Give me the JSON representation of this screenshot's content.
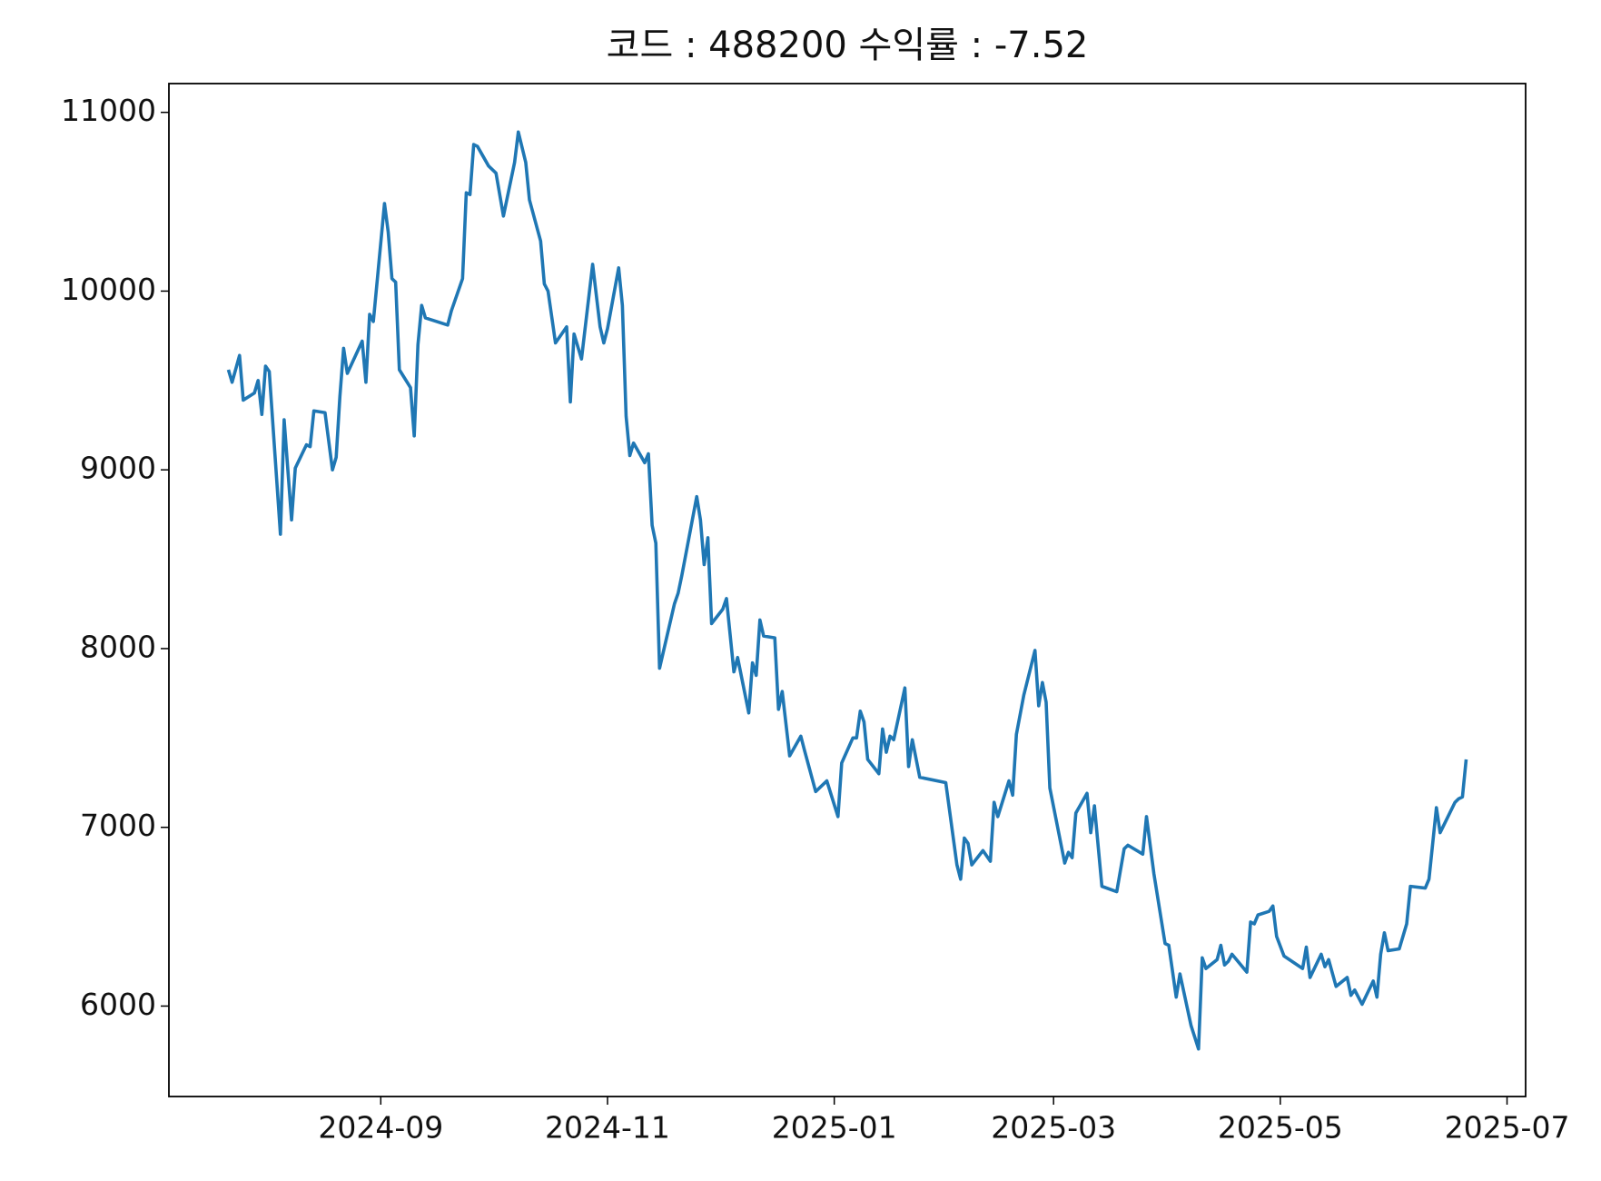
{
  "chart_data": {
    "type": "line",
    "title": "코드 : 488200 수익률 : -7.52",
    "x": [
      "2024-07-22",
      "2024-07-23",
      "2024-07-25",
      "2024-07-26",
      "2024-07-29",
      "2024-07-30",
      "2024-07-31",
      "2024-08-01",
      "2024-08-02",
      "2024-08-05",
      "2024-08-06",
      "2024-08-08",
      "2024-08-09",
      "2024-08-12",
      "2024-08-13",
      "2024-08-14",
      "2024-08-17",
      "2024-08-19",
      "2024-08-20",
      "2024-08-21",
      "2024-08-22",
      "2024-08-23",
      "2024-08-27",
      "2024-08-28",
      "2024-08-29",
      "2024-08-30",
      "2024-09-02",
      "2024-09-03",
      "2024-09-04",
      "2024-09-05",
      "2024-09-06",
      "2024-09-09",
      "2024-09-10",
      "2024-09-11",
      "2024-09-12",
      "2024-09-13",
      "2024-09-19",
      "2024-09-20",
      "2024-09-23",
      "2024-09-24",
      "2024-09-25",
      "2024-09-26",
      "2024-09-27",
      "2024-09-30",
      "2024-10-02",
      "2024-10-04",
      "2024-10-07",
      "2024-10-08",
      "2024-10-10",
      "2024-10-11",
      "2024-10-14",
      "2024-10-15",
      "2024-10-16",
      "2024-10-18",
      "2024-10-21",
      "2024-10-22",
      "2024-10-23",
      "2024-10-25",
      "2024-10-28",
      "2024-10-30",
      "2024-10-31",
      "2024-11-01",
      "2024-11-04",
      "2024-11-05",
      "2024-11-06",
      "2024-11-07",
      "2024-11-08",
      "2024-11-11",
      "2024-11-12",
      "2024-11-13",
      "2024-11-14",
      "2024-11-15",
      "2024-11-19",
      "2024-11-20",
      "2024-11-21",
      "2024-11-25",
      "2024-11-26",
      "2024-11-27",
      "2024-11-28",
      "2024-11-29",
      "2024-12-02",
      "2024-12-03",
      "2024-12-05",
      "2024-12-06",
      "2024-12-09",
      "2024-12-10",
      "2024-12-11",
      "2024-12-12",
      "2024-12-13",
      "2024-12-16",
      "2024-12-17",
      "2024-12-18",
      "2024-12-20",
      "2024-12-23",
      "2024-12-24",
      "2024-12-27",
      "2024-12-30",
      "2025-01-02",
      "2025-01-03",
      "2025-01-06",
      "2025-01-07",
      "2025-01-08",
      "2025-01-09",
      "2025-01-10",
      "2025-01-13",
      "2025-01-14",
      "2025-01-15",
      "2025-01-16",
      "2025-01-17",
      "2025-01-20",
      "2025-01-21",
      "2025-01-22",
      "2025-01-24",
      "2025-01-31",
      "2025-02-03",
      "2025-02-04",
      "2025-02-05",
      "2025-02-06",
      "2025-02-07",
      "2025-02-10",
      "2025-02-12",
      "2025-02-13",
      "2025-02-14",
      "2025-02-17",
      "2025-02-18",
      "2025-02-19",
      "2025-02-21",
      "2025-02-24",
      "2025-02-25",
      "2025-02-26",
      "2025-02-27",
      "2025-02-28",
      "2025-03-04",
      "2025-03-05",
      "2025-03-06",
      "2025-03-07",
      "2025-03-10",
      "2025-03-11",
      "2025-03-12",
      "2025-03-14",
      "2025-03-18",
      "2025-03-20",
      "2025-03-21",
      "2025-03-25",
      "2025-03-26",
      "2025-03-28",
      "2025-03-31",
      "2025-04-01",
      "2025-04-03",
      "2025-04-04",
      "2025-04-07",
      "2025-04-09",
      "2025-04-10",
      "2025-04-11",
      "2025-04-14",
      "2025-04-15",
      "2025-04-16",
      "2025-04-17",
      "2025-04-18",
      "2025-04-22",
      "2025-04-23",
      "2025-04-24",
      "2025-04-25",
      "2025-04-28",
      "2025-04-29",
      "2025-04-30",
      "2025-05-02",
      "2025-05-07",
      "2025-05-08",
      "2025-05-09",
      "2025-05-12",
      "2025-05-13",
      "2025-05-14",
      "2025-05-16",
      "2025-05-19",
      "2025-05-20",
      "2025-05-21",
      "2025-05-23",
      "2025-05-26",
      "2025-05-27",
      "2025-05-28",
      "2025-05-29",
      "2025-05-30",
      "2025-06-02",
      "2025-06-04",
      "2025-06-05",
      "2025-06-09",
      "2025-06-10",
      "2025-06-12",
      "2025-06-13",
      "2025-06-17",
      "2025-06-18",
      "2025-06-19",
      "2025-06-20"
    ],
    "series": [
      {
        "color": "#1f77b4",
        "values": [
          9560,
          9490,
          9640,
          9390,
          9430,
          9500,
          9310,
          9580,
          9550,
          8640,
          9280,
          8720,
          9010,
          9140,
          9130,
          9330,
          9320,
          9000,
          9070,
          9410,
          9680,
          9540,
          9720,
          9490,
          9870,
          9830,
          10490,
          10330,
          10070,
          10050,
          9560,
          9460,
          9190,
          9700,
          9920,
          9850,
          9810,
          9890,
          10070,
          10550,
          10540,
          10820,
          10810,
          10700,
          10660,
          10420,
          10720,
          10890,
          10720,
          10510,
          10280,
          10040,
          10000,
          9710,
          9800,
          9380,
          9760,
          9620,
          10150,
          9800,
          9710,
          9790,
          10130,
          9920,
          9300,
          9080,
          9150,
          9040,
          9090,
          8690,
          8590,
          7890,
          8250,
          8310,
          8410,
          8850,
          8720,
          8470,
          8620,
          8140,
          8220,
          8280,
          7870,
          7950,
          7640,
          7920,
          7850,
          8160,
          8070,
          8060,
          7660,
          7760,
          7400,
          7510,
          7430,
          7200,
          7260,
          7060,
          7360,
          7500,
          7500,
          7650,
          7590,
          7380,
          7300,
          7550,
          7420,
          7510,
          7490,
          7780,
          7340,
          7490,
          7280,
          7250,
          6790,
          6710,
          6940,
          6910,
          6790,
          6870,
          6810,
          7140,
          7060,
          7260,
          7180,
          7520,
          7740,
          7990,
          7680,
          7810,
          7700,
          7220,
          6800,
          6860,
          6830,
          7080,
          7190,
          6970,
          7120,
          6670,
          6640,
          6880,
          6900,
          6850,
          7060,
          6740,
          6350,
          6340,
          6050,
          6180,
          5890,
          5760,
          6270,
          6210,
          6260,
          6340,
          6230,
          6250,
          6290,
          6190,
          6470,
          6460,
          6510,
          6530,
          6560,
          6390,
          6280,
          6210,
          6330,
          6160,
          6290,
          6220,
          6260,
          6110,
          6160,
          6060,
          6090,
          6010,
          6140,
          6050,
          6290,
          6410,
          6310,
          6320,
          6460,
          6670,
          6660,
          6710,
          7110,
          6970,
          7140,
          7160,
          7170,
          7380
        ]
      }
    ],
    "xlim": [
      "2024-07-06",
      "2025-07-06"
    ],
    "xticks": [
      "2024-09",
      "2024-11",
      "2025-01",
      "2025-03",
      "2025-05",
      "2025-07"
    ],
    "ylim": [
      5494,
      11161
    ],
    "yticks": [
      6000,
      7000,
      8000,
      9000,
      10000,
      11000
    ]
  }
}
